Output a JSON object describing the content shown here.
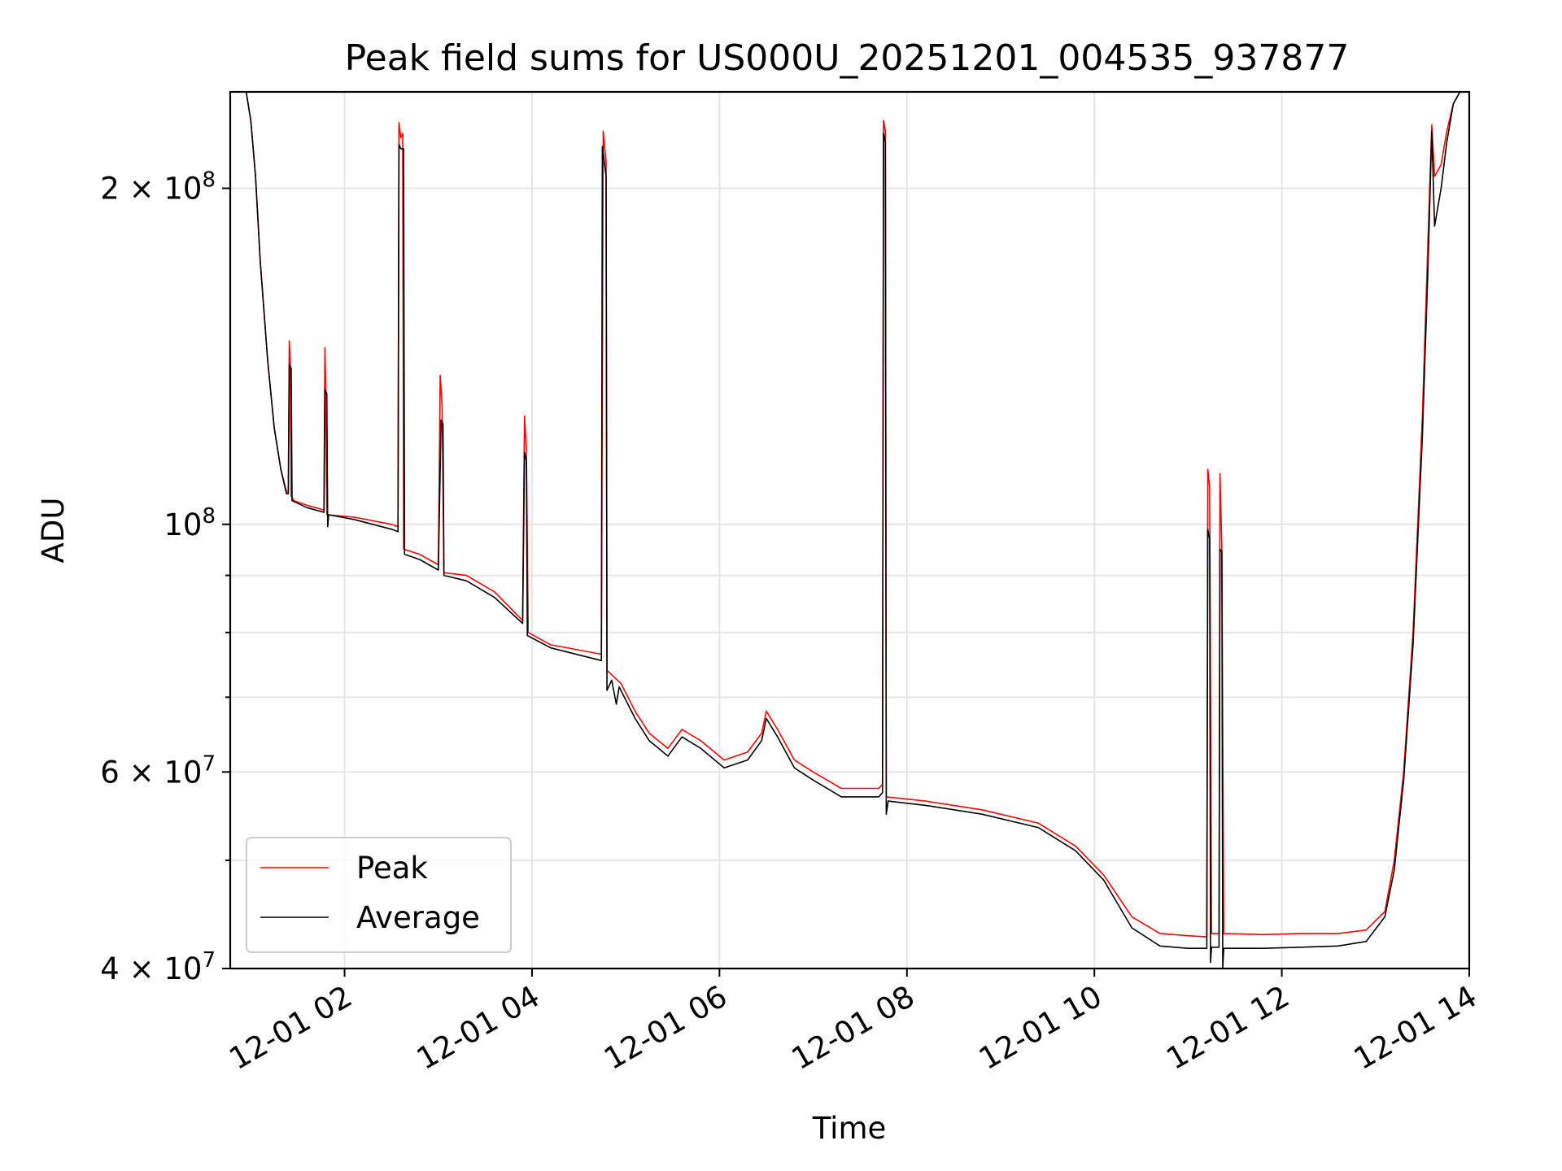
{
  "chart_data": {
    "type": "line",
    "title": "Peak field sums for US000U_20251201_004535_937877",
    "xlabel": "Time",
    "ylabel": "ADU",
    "x_unit": "hours since 12-01 00:00",
    "xlim": [
      0.78,
      14.0
    ],
    "ylim": [
      40000000,
      244000000
    ],
    "yscale": "log",
    "grid": true,
    "legend_position": "lower-left",
    "x_ticks": [
      {
        "value": 2,
        "label": "12-01 02"
      },
      {
        "value": 4,
        "label": "12-01 04"
      },
      {
        "value": 6,
        "label": "12-01 06"
      },
      {
        "value": 8,
        "label": "12-01 08"
      },
      {
        "value": 10,
        "label": "12-01 10"
      },
      {
        "value": 12,
        "label": "12-01 12"
      },
      {
        "value": 14,
        "label": "12-01 14"
      }
    ],
    "y_ticks": [
      {
        "value": 40000000,
        "base": "4 × 10",
        "exp": "7"
      },
      {
        "value": 60000000,
        "base": "6 × 10",
        "exp": "7"
      },
      {
        "value": 100000000,
        "base": "10",
        "exp": "8"
      },
      {
        "value": 200000000,
        "base": "2 × 10",
        "exp": "8"
      }
    ],
    "y_minor_ticks": [
      50000000,
      70000000,
      80000000,
      90000000
    ],
    "series": [
      {
        "name": "Peak",
        "color": "#ff0000",
        "points": [
          [
            0.78,
            244000000
          ],
          [
            0.95,
            244000000
          ],
          [
            1.0,
            230000000
          ],
          [
            1.05,
            205000000
          ],
          [
            1.1,
            172000000
          ],
          [
            1.18,
            140000000
          ],
          [
            1.25,
            122000000
          ],
          [
            1.32,
            112000000
          ],
          [
            1.38,
            107000000
          ],
          [
            1.4,
            107000000
          ],
          [
            1.41,
            146000000
          ],
          [
            1.42,
            140000000
          ],
          [
            1.43,
            106000000
          ],
          [
            1.46,
            105000000
          ],
          [
            1.6,
            104000000
          ],
          [
            1.78,
            103000000
          ],
          [
            1.79,
            144000000
          ],
          [
            1.8,
            132000000
          ],
          [
            1.81,
            102000000
          ],
          [
            2.1,
            101500000
          ],
          [
            2.5,
            100000000
          ],
          [
            2.57,
            99500000
          ],
          [
            2.58,
            229000000
          ],
          [
            2.6,
            222000000
          ],
          [
            2.62,
            224000000
          ],
          [
            2.63,
            95000000
          ],
          [
            2.8,
            94000000
          ],
          [
            3.0,
            92000000
          ],
          [
            3.02,
            136000000
          ],
          [
            3.04,
            128000000
          ],
          [
            3.06,
            90500000
          ],
          [
            3.3,
            90000000
          ],
          [
            3.6,
            87000000
          ],
          [
            3.9,
            82000000
          ],
          [
            3.92,
            125000000
          ],
          [
            3.94,
            117000000
          ],
          [
            3.96,
            80000000
          ],
          [
            4.2,
            78000000
          ],
          [
            4.74,
            76500000
          ],
          [
            4.76,
            225000000
          ],
          [
            4.79,
            211000000
          ],
          [
            4.8,
            74000000
          ],
          [
            4.95,
            72000000
          ],
          [
            5.1,
            68000000
          ],
          [
            5.25,
            65000000
          ],
          [
            5.45,
            63000000
          ],
          [
            5.6,
            65500000
          ],
          [
            5.8,
            64000000
          ],
          [
            6.05,
            61500000
          ],
          [
            6.3,
            62500000
          ],
          [
            6.45,
            65000000
          ],
          [
            6.5,
            68000000
          ],
          [
            6.62,
            65500000
          ],
          [
            6.8,
            61500000
          ],
          [
            7.0,
            60000000
          ],
          [
            7.3,
            58000000
          ],
          [
            7.7,
            58000000
          ],
          [
            7.74,
            58500000
          ],
          [
            7.75,
            230000000
          ],
          [
            7.77,
            225000000
          ],
          [
            7.78,
            57000000
          ],
          [
            8.2,
            56500000
          ],
          [
            8.8,
            55500000
          ],
          [
            9.4,
            54000000
          ],
          [
            9.8,
            51500000
          ],
          [
            10.1,
            48500000
          ],
          [
            10.4,
            44500000
          ],
          [
            10.7,
            43000000
          ],
          [
            11.0,
            42800000
          ],
          [
            11.2,
            42700000
          ],
          [
            11.21,
            112000000
          ],
          [
            11.23,
            108000000
          ],
          [
            11.25,
            43000000
          ],
          [
            11.33,
            43000000
          ],
          [
            11.34,
            111000000
          ],
          [
            11.36,
            95000000
          ],
          [
            11.38,
            43000000
          ],
          [
            11.8,
            42900000
          ],
          [
            12.2,
            43000000
          ],
          [
            12.6,
            43000000
          ],
          [
            12.9,
            43300000
          ],
          [
            13.1,
            45000000
          ],
          [
            13.2,
            50000000
          ],
          [
            13.3,
            60000000
          ],
          [
            13.4,
            80000000
          ],
          [
            13.5,
            125000000
          ],
          [
            13.56,
            180000000
          ],
          [
            13.6,
            228000000
          ],
          [
            13.63,
            205000000
          ],
          [
            13.7,
            210000000
          ],
          [
            13.76,
            225000000
          ],
          [
            13.83,
            238000000
          ],
          [
            13.9,
            244000000
          ],
          [
            14.0,
            244000000
          ]
        ]
      },
      {
        "name": "Average",
        "color": "#000000",
        "points": [
          [
            0.78,
            244000000
          ],
          [
            0.95,
            244000000
          ],
          [
            1.0,
            230000000
          ],
          [
            1.05,
            205000000
          ],
          [
            1.1,
            172000000
          ],
          [
            1.18,
            140000000
          ],
          [
            1.25,
            122000000
          ],
          [
            1.32,
            112000000
          ],
          [
            1.38,
            106500000
          ],
          [
            1.4,
            106500000
          ],
          [
            1.41,
            139000000
          ],
          [
            1.43,
            138000000
          ],
          [
            1.44,
            105000000
          ],
          [
            1.6,
            103500000
          ],
          [
            1.78,
            102500000
          ],
          [
            1.79,
            132000000
          ],
          [
            1.81,
            131000000
          ],
          [
            1.82,
            99500000
          ],
          [
            1.83,
            102000000
          ],
          [
            2.1,
            101000000
          ],
          [
            2.5,
            99000000
          ],
          [
            2.57,
            98500000
          ],
          [
            2.58,
            219000000
          ],
          [
            2.6,
            217000000
          ],
          [
            2.63,
            217000000
          ],
          [
            2.64,
            94000000
          ],
          [
            2.8,
            93000000
          ],
          [
            3.0,
            91000000
          ],
          [
            3.03,
            124000000
          ],
          [
            3.05,
            123000000
          ],
          [
            3.06,
            90000000
          ],
          [
            3.3,
            89000000
          ],
          [
            3.6,
            86000000
          ],
          [
            3.9,
            81500000
          ],
          [
            3.92,
            116000000
          ],
          [
            3.94,
            114000000
          ],
          [
            3.95,
            79500000
          ],
          [
            4.2,
            77500000
          ],
          [
            4.74,
            75500000
          ],
          [
            4.75,
            218000000
          ],
          [
            4.79,
            205000000
          ],
          [
            4.8,
            71000000
          ],
          [
            4.85,
            72500000
          ],
          [
            4.9,
            69000000
          ],
          [
            4.93,
            71500000
          ],
          [
            5.1,
            67000000
          ],
          [
            5.25,
            64000000
          ],
          [
            5.45,
            62000000
          ],
          [
            5.6,
            64500000
          ],
          [
            5.8,
            63000000
          ],
          [
            6.05,
            60500000
          ],
          [
            6.3,
            61500000
          ],
          [
            6.45,
            64000000
          ],
          [
            6.5,
            67000000
          ],
          [
            6.62,
            64500000
          ],
          [
            6.8,
            60500000
          ],
          [
            7.0,
            59000000
          ],
          [
            7.3,
            57000000
          ],
          [
            7.7,
            57000000
          ],
          [
            7.74,
            57500000
          ],
          [
            7.75,
            224000000
          ],
          [
            7.77,
            220000000
          ],
          [
            7.78,
            55000000
          ],
          [
            7.8,
            56500000
          ],
          [
            8.2,
            56000000
          ],
          [
            8.8,
            55000000
          ],
          [
            9.4,
            53500000
          ],
          [
            9.8,
            51000000
          ],
          [
            10.1,
            48000000
          ],
          [
            10.4,
            43500000
          ],
          [
            10.7,
            41900000
          ],
          [
            11.0,
            41700000
          ],
          [
            11.2,
            41700000
          ],
          [
            11.21,
            99000000
          ],
          [
            11.23,
            97000000
          ],
          [
            11.24,
            40500000
          ],
          [
            11.25,
            41800000
          ],
          [
            11.33,
            41800000
          ],
          [
            11.34,
            95000000
          ],
          [
            11.36,
            94500000
          ],
          [
            11.37,
            40000000
          ],
          [
            11.38,
            41700000
          ],
          [
            11.8,
            41700000
          ],
          [
            12.2,
            41800000
          ],
          [
            12.6,
            41900000
          ],
          [
            12.9,
            42300000
          ],
          [
            13.1,
            44500000
          ],
          [
            13.2,
            49000000
          ],
          [
            13.3,
            59000000
          ],
          [
            13.4,
            78000000
          ],
          [
            13.5,
            120000000
          ],
          [
            13.56,
            170000000
          ],
          [
            13.6,
            225000000
          ],
          [
            13.63,
            185000000
          ],
          [
            13.7,
            200000000
          ],
          [
            13.76,
            220000000
          ],
          [
            13.83,
            238000000
          ],
          [
            13.9,
            244000000
          ],
          [
            14.0,
            244000000
          ]
        ]
      }
    ]
  }
}
